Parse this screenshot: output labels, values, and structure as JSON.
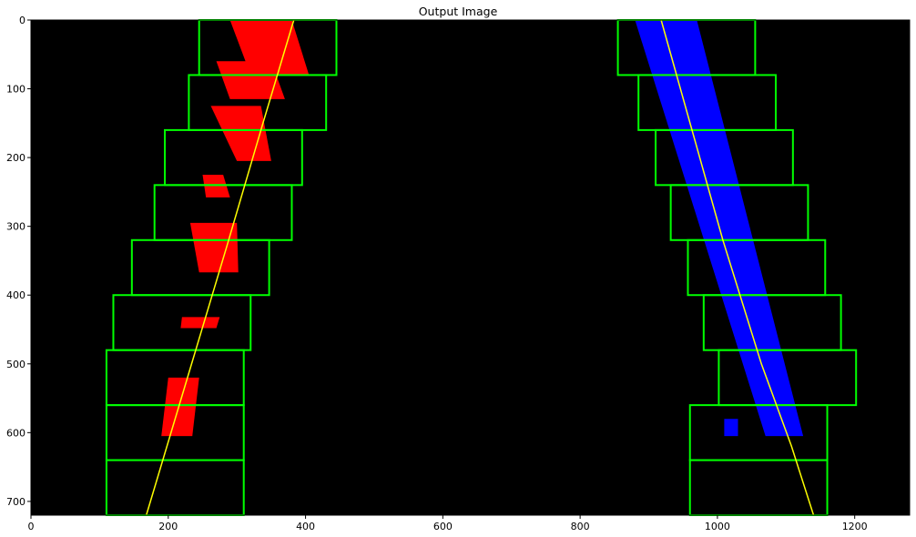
{
  "chart_data": {
    "type": "scatter",
    "title": "Output Image",
    "xlabel": "",
    "ylabel": "",
    "xlim": [
      0,
      1280
    ],
    "ylim": [
      720,
      0
    ],
    "grid": false,
    "background": "#000000",
    "xticks": [
      0,
      200,
      400,
      600,
      800,
      1000,
      1200
    ],
    "yticks": [
      0,
      100,
      200,
      300,
      400,
      500,
      600,
      700
    ],
    "colors": {
      "left_lane_pixels": "#ff0000",
      "right_lane_pixels": "#0000ff",
      "windows": "#00ff00",
      "fit_line": "#ffff00"
    },
    "left_pixel_regions": [
      {
        "x1": 290,
        "y1": 0,
        "x2": 380,
        "y2": 0,
        "x3": 405,
        "y3": 80,
        "x4": 320,
        "y4": 80
      },
      {
        "x1": 270,
        "y1": 60,
        "x2": 350,
        "y2": 60,
        "x3": 370,
        "y3": 115,
        "x4": 290,
        "y4": 115
      },
      {
        "x1": 262,
        "y1": 125,
        "x2": 335,
        "y2": 125,
        "x3": 350,
        "y3": 205,
        "x4": 300,
        "y4": 205
      },
      {
        "x1": 250,
        "y1": 225,
        "x2": 280,
        "y2": 225,
        "x3": 290,
        "y3": 258,
        "x4": 255,
        "y4": 258
      },
      {
        "x1": 232,
        "y1": 295,
        "x2": 300,
        "y2": 295,
        "x3": 302,
        "y3": 367,
        "x4": 245,
        "y4": 367
      },
      {
        "x1": 220,
        "y1": 432,
        "x2": 275,
        "y2": 432,
        "x3": 270,
        "y3": 448,
        "x4": 218,
        "y4": 448
      },
      {
        "x1": 200,
        "y1": 520,
        "x2": 245,
        "y2": 520,
        "x3": 235,
        "y3": 605,
        "x4": 190,
        "y4": 605
      }
    ],
    "right_pixel_regions": [
      {
        "x1": 880,
        "y1": 0,
        "x2": 970,
        "y2": 0,
        "x3": 1125,
        "y3": 605,
        "x4": 1070,
        "y4": 605
      },
      {
        "x1": 1010,
        "y1": 580,
        "x2": 1030,
        "y2": 580,
        "x3": 1030,
        "y3": 605,
        "x4": 1010,
        "y4": 605
      }
    ],
    "left_windows": [
      {
        "x_min": 245,
        "x_max": 445,
        "y_min": 0,
        "y_max": 80
      },
      {
        "x_min": 230,
        "x_max": 430,
        "y_min": 80,
        "y_max": 160
      },
      {
        "x_min": 195,
        "x_max": 395,
        "y_min": 160,
        "y_max": 240
      },
      {
        "x_min": 180,
        "x_max": 380,
        "y_min": 240,
        "y_max": 320
      },
      {
        "x_min": 147,
        "x_max": 347,
        "y_min": 320,
        "y_max": 400
      },
      {
        "x_min": 120,
        "x_max": 320,
        "y_min": 400,
        "y_max": 480
      },
      {
        "x_min": 110,
        "x_max": 310,
        "y_min": 480,
        "y_max": 560
      },
      {
        "x_min": 110,
        "x_max": 310,
        "y_min": 560,
        "y_max": 640
      },
      {
        "x_min": 110,
        "x_max": 310,
        "y_min": 640,
        "y_max": 720
      }
    ],
    "right_windows": [
      {
        "x_min": 855,
        "x_max": 1055,
        "y_min": 0,
        "y_max": 80
      },
      {
        "x_min": 885,
        "x_max": 1085,
        "y_min": 80,
        "y_max": 160
      },
      {
        "x_min": 910,
        "x_max": 1110,
        "y_min": 160,
        "y_max": 240
      },
      {
        "x_min": 932,
        "x_max": 1132,
        "y_min": 240,
        "y_max": 320
      },
      {
        "x_min": 957,
        "x_max": 1157,
        "y_min": 320,
        "y_max": 400
      },
      {
        "x_min": 980,
        "x_max": 1180,
        "y_min": 400,
        "y_max": 480
      },
      {
        "x_min": 1002,
        "x_max": 1202,
        "y_min": 480,
        "y_max": 560
      },
      {
        "x_min": 960,
        "x_max": 1160,
        "y_min": 560,
        "y_max": 640
      },
      {
        "x_min": 960,
        "x_max": 1160,
        "y_min": 640,
        "y_max": 720
      }
    ],
    "left_fit_line": {
      "x": [
        383,
        338,
        285,
        228,
        168
      ],
      "y": [
        0,
        150,
        330,
        520,
        720
      ]
    },
    "right_fit_line": {
      "x": [
        918,
        1008,
        1064,
        1108,
        1140
      ],
      "y": [
        0,
        320,
        500,
        620,
        720
      ]
    }
  }
}
